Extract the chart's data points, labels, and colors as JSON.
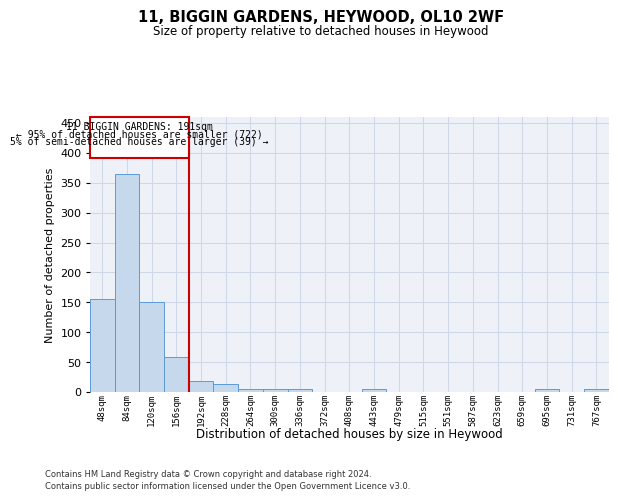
{
  "title1": "11, BIGGIN GARDENS, HEYWOOD, OL10 2WF",
  "title2": "Size of property relative to detached houses in Heywood",
  "xlabel": "Distribution of detached houses by size in Heywood",
  "ylabel": "Number of detached properties",
  "footnote1": "Contains HM Land Registry data © Crown copyright and database right 2024.",
  "footnote2": "Contains public sector information licensed under the Open Government Licence v3.0.",
  "annotation_line1": "11 BIGGIN GARDENS: 191sqm",
  "annotation_line2": "← 95% of detached houses are smaller (722)",
  "annotation_line3": "5% of semi-detached houses are larger (39) →",
  "bar_values": [
    155,
    365,
    150,
    58,
    18,
    13,
    5,
    5,
    5,
    0,
    0,
    5,
    0,
    0,
    0,
    0,
    0,
    0,
    5,
    0,
    5
  ],
  "bin_labels": [
    "48sqm",
    "84sqm",
    "120sqm",
    "156sqm",
    "192sqm",
    "228sqm",
    "264sqm",
    "300sqm",
    "336sqm",
    "372sqm",
    "408sqm",
    "443sqm",
    "479sqm",
    "515sqm",
    "551sqm",
    "587sqm",
    "623sqm",
    "659sqm",
    "695sqm",
    "731sqm",
    "767sqm"
  ],
  "bar_color": "#c5d8ec",
  "bar_edge_color": "#5b9bd5",
  "grid_color": "#d0d8e8",
  "background_color": "#eef2f8",
  "red_line_color": "#cc0000",
  "annotation_box_color": "#cc0000",
  "ylim": [
    0,
    460
  ],
  "yticks": [
    0,
    50,
    100,
    150,
    200,
    250,
    300,
    350,
    400,
    450
  ],
  "red_line_x": 3.5
}
